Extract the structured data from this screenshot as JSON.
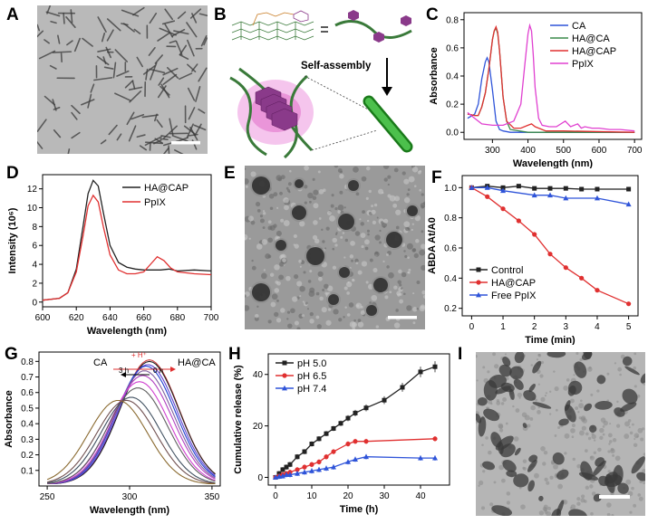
{
  "panels": {
    "A": {
      "letter": "A"
    },
    "B": {
      "letter": "B",
      "arrow_label": "Self-assembly"
    },
    "C": {
      "letter": "C"
    },
    "D": {
      "letter": "D"
    },
    "E": {
      "letter": "E"
    },
    "F": {
      "letter": "F"
    },
    "G": {
      "letter": "G",
      "inset_left": "CA",
      "inset_right": "HA@CA",
      "inset_top": "+ H⁺",
      "inset_time_left": "3 h",
      "inset_time_right": "0 h"
    },
    "H": {
      "letter": "H"
    },
    "I": {
      "letter": "I"
    }
  },
  "colors": {
    "black": "#222222",
    "blue": "#2f54d9",
    "green": "#3a8a4a",
    "red": "#e03030",
    "magenta": "#e040d0",
    "purple": "#8a3a8a",
    "chain_green": "#3a7a3a"
  },
  "chart_data": [
    {
      "id": "C",
      "type": "line",
      "xlabel": "Wavelength (nm)",
      "ylabel": "Absorbance",
      "xlim": [
        220,
        720
      ],
      "ylim": [
        -0.05,
        0.85
      ],
      "xticks": [
        300,
        400,
        500,
        600,
        700
      ],
      "yticks": [
        0.0,
        0.2,
        0.4,
        0.6,
        0.8
      ],
      "legend": "top-right",
      "series": [
        {
          "name": "CA",
          "color": "#2f54d9",
          "x": [
            230,
            250,
            260,
            270,
            280,
            285,
            290,
            300,
            310,
            320,
            330,
            350,
            400,
            500,
            700
          ],
          "y": [
            0.1,
            0.13,
            0.2,
            0.38,
            0.5,
            0.53,
            0.5,
            0.3,
            0.08,
            0.02,
            0.01,
            0.0,
            0.0,
            0.0,
            0.0
          ]
        },
        {
          "name": "HA@CA",
          "color": "#3a8a4a",
          "x": [
            230,
            250,
            260,
            270,
            280,
            290,
            300,
            305,
            310,
            315,
            320,
            330,
            340,
            350,
            400,
            500,
            700
          ],
          "y": [
            0.13,
            0.12,
            0.12,
            0.18,
            0.28,
            0.45,
            0.66,
            0.72,
            0.74,
            0.7,
            0.58,
            0.25,
            0.08,
            0.02,
            0.0,
            0.0,
            0.0
          ]
        },
        {
          "name": "HA@CAP",
          "color": "#e03030",
          "x": [
            230,
            250,
            260,
            270,
            280,
            290,
            300,
            305,
            310,
            315,
            320,
            330,
            340,
            360,
            380,
            400,
            410,
            420,
            450,
            500,
            700
          ],
          "y": [
            0.13,
            0.12,
            0.12,
            0.18,
            0.28,
            0.45,
            0.66,
            0.72,
            0.75,
            0.71,
            0.58,
            0.25,
            0.08,
            0.03,
            0.03,
            0.05,
            0.06,
            0.04,
            0.01,
            0.01,
            0.0
          ]
        },
        {
          "name": "PpIX",
          "color": "#e040d0",
          "x": [
            230,
            250,
            270,
            300,
            330,
            360,
            380,
            390,
            400,
            405,
            410,
            415,
            420,
            430,
            440,
            460,
            480,
            505,
            520,
            540,
            550,
            560,
            580,
            600,
            630,
            660,
            700
          ],
          "y": [
            0.14,
            0.1,
            0.06,
            0.05,
            0.05,
            0.08,
            0.2,
            0.45,
            0.7,
            0.76,
            0.72,
            0.55,
            0.32,
            0.1,
            0.05,
            0.04,
            0.04,
            0.08,
            0.04,
            0.06,
            0.03,
            0.04,
            0.03,
            0.03,
            0.02,
            0.02,
            0.01
          ]
        }
      ]
    },
    {
      "id": "D",
      "type": "line",
      "xlabel": "Wavelength (nm)",
      "ylabel": "Intensity (10⁶)",
      "xlim": [
        600,
        700
      ],
      "ylim": [
        -0.5,
        13.5
      ],
      "xticks": [
        600,
        620,
        640,
        660,
        680,
        700
      ],
      "yticks": [
        0,
        2,
        4,
        6,
        8,
        10,
        12
      ],
      "legend": "top-right",
      "series": [
        {
          "name": "HA@CAP",
          "color": "#222222",
          "x": [
            600,
            610,
            615,
            620,
            624,
            627,
            630,
            633,
            636,
            640,
            645,
            650,
            655,
            660,
            665,
            670,
            675,
            680,
            690,
            700
          ],
          "y": [
            0.2,
            0.4,
            1.0,
            3.5,
            8.0,
            11.5,
            12.9,
            12.3,
            9.5,
            6.0,
            4.2,
            3.7,
            3.5,
            3.4,
            3.4,
            3.4,
            3.5,
            3.3,
            3.4,
            3.3
          ]
        },
        {
          "name": "PpIX",
          "color": "#e03030",
          "x": [
            600,
            610,
            615,
            620,
            624,
            627,
            630,
            633,
            636,
            640,
            645,
            650,
            655,
            660,
            665,
            668,
            672,
            676,
            680,
            690,
            700
          ],
          "y": [
            0.2,
            0.4,
            1.0,
            3.2,
            7.0,
            10.2,
            11.3,
            10.6,
            8.0,
            5.0,
            3.4,
            3.0,
            3.0,
            3.2,
            4.2,
            4.8,
            4.4,
            3.6,
            3.2,
            3.0,
            2.9
          ]
        }
      ]
    },
    {
      "id": "F",
      "type": "line",
      "xlabel": "Time (min)",
      "ylabel": "ABDA At/A0",
      "xlim": [
        -0.3,
        5.3
      ],
      "ylim": [
        0.15,
        1.08
      ],
      "xticks": [
        0,
        1,
        2,
        3,
        4,
        5
      ],
      "yticks": [
        0.2,
        0.4,
        0.6,
        0.8,
        1.0
      ],
      "legend": "bottom-left",
      "series": [
        {
          "name": "Control",
          "color": "#222222",
          "marker": "square",
          "x": [
            0,
            0.5,
            1,
            1.5,
            2,
            2.5,
            3,
            3.5,
            4,
            5
          ],
          "y": [
            1.0,
            1.01,
            1.0,
            1.01,
            0.995,
            0.995,
            0.995,
            0.99,
            0.99,
            0.99
          ]
        },
        {
          "name": "HA@CAP",
          "color": "#e03030",
          "marker": "circle",
          "x": [
            0,
            0.5,
            1,
            1.5,
            2,
            2.5,
            3,
            3.5,
            4,
            5
          ],
          "y": [
            1.0,
            0.94,
            0.86,
            0.78,
            0.69,
            0.56,
            0.47,
            0.4,
            0.32,
            0.23
          ]
        },
        {
          "name": "Free PpIX",
          "color": "#2f54d9",
          "marker": "triangle",
          "x": [
            0,
            0.5,
            1,
            2,
            2.5,
            3,
            4,
            5
          ],
          "y": [
            1.0,
            1.0,
            0.98,
            0.95,
            0.95,
            0.93,
            0.93,
            0.89
          ]
        }
      ]
    },
    {
      "id": "G",
      "type": "line",
      "xlabel": "Wavelength (nm)",
      "ylabel": "Absorbance",
      "xlim": [
        245,
        355
      ],
      "ylim": [
        0.0,
        0.86
      ],
      "xticks": [
        250,
        300,
        350
      ],
      "yticks": [
        0.1,
        0.2,
        0.3,
        0.4,
        0.5,
        0.6,
        0.7,
        0.8
      ],
      "series": [
        {
          "color": "#d04040",
          "peak_x": 312,
          "peak_y": 0.8
        },
        {
          "color": "#202020",
          "peak_x": 312,
          "peak_y": 0.79
        },
        {
          "color": "#6040d0",
          "peak_x": 311,
          "peak_y": 0.77
        },
        {
          "color": "#2040d0",
          "peak_x": 310,
          "peak_y": 0.76
        },
        {
          "color": "#8060a0",
          "peak_x": 309,
          "peak_y": 0.73
        },
        {
          "color": "#b040c0",
          "peak_x": 308,
          "peak_y": 0.7
        },
        {
          "color": "#d040d0",
          "peak_x": 306,
          "peak_y": 0.66
        },
        {
          "color": "#606060",
          "peak_x": 305,
          "peak_y": 0.62
        },
        {
          "color": "#405060",
          "peak_x": 301,
          "peak_y": 0.56
        },
        {
          "color": "#705050",
          "peak_x": 298,
          "peak_y": 0.54
        },
        {
          "color": "#8a6a30",
          "peak_x": 293,
          "peak_y": 0.54
        }
      ]
    },
    {
      "id": "H",
      "type": "line",
      "xlabel": "Time (h)",
      "ylabel": "Cumulative release (%)",
      "xlim": [
        -2,
        48
      ],
      "ylim": [
        -3,
        48
      ],
      "xticks": [
        0,
        10,
        20,
        30,
        40
      ],
      "yticks": [
        0,
        20,
        40
      ],
      "legend": "top-left",
      "series": [
        {
          "name": "pH 5.0",
          "color": "#222222",
          "marker": "square",
          "x": [
            0,
            1,
            2,
            3,
            4,
            6,
            8,
            10,
            12,
            14,
            16,
            18,
            20,
            22,
            25,
            30,
            35,
            40,
            44
          ],
          "y": [
            0,
            1.5,
            3,
            4,
            5,
            8,
            10,
            13,
            15,
            17,
            19,
            21,
            23,
            25,
            27,
            30,
            35,
            41,
            43
          ]
        },
        {
          "name": "pH 6.5",
          "color": "#e03030",
          "marker": "circle",
          "x": [
            0,
            1,
            2,
            3,
            4,
            6,
            8,
            10,
            12,
            14,
            16,
            20,
            22,
            25,
            44
          ],
          "y": [
            0,
            0.5,
            1,
            1.5,
            2,
            3,
            4,
            5,
            6,
            8,
            10,
            13,
            14,
            14,
            15
          ]
        },
        {
          "name": "pH 7.4",
          "color": "#2f54d9",
          "marker": "triangle",
          "x": [
            0,
            1,
            2,
            3,
            4,
            6,
            8,
            10,
            12,
            14,
            16,
            20,
            22,
            25,
            40,
            44
          ],
          "y": [
            0,
            0.3,
            0.5,
            1,
            1,
            1.5,
            2,
            2.5,
            3,
            3.5,
            4,
            6,
            7,
            8,
            7.5,
            7.5
          ]
        }
      ]
    }
  ]
}
